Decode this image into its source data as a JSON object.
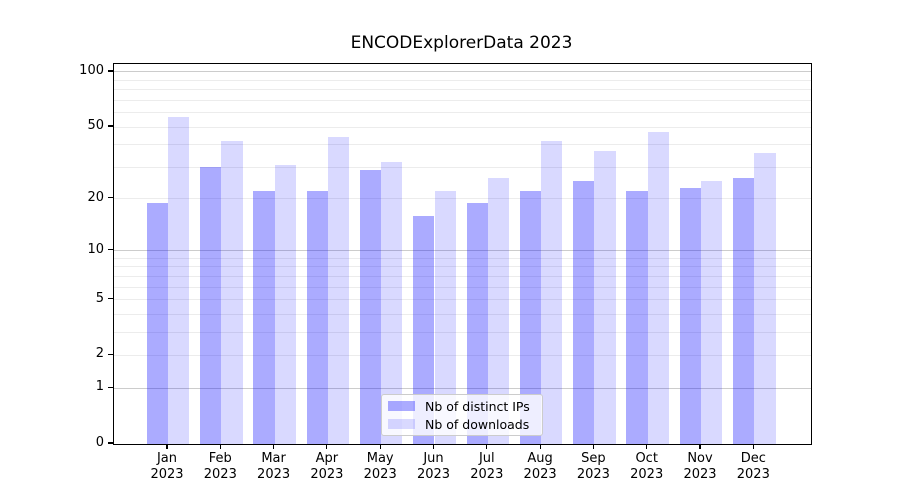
{
  "figure": {
    "title": "ENCODExplorerData 2023"
  },
  "chart_data": {
    "type": "bar",
    "title": "ENCODExplorerData 2023",
    "categories": [
      "Jan 2023",
      "Feb 2023",
      "Mar 2023",
      "Apr 2023",
      "May 2023",
      "Jun 2023",
      "Jul 2023",
      "Aug 2023",
      "Sep 2023",
      "Oct 2023",
      "Nov 2023",
      "Dec 2023"
    ],
    "x_tick_months": [
      "Jan",
      "Feb",
      "Mar",
      "Apr",
      "May",
      "Jun",
      "Jul",
      "Aug",
      "Sep",
      "Oct",
      "Nov",
      "Dec"
    ],
    "x_tick_year": "2023",
    "series": [
      {
        "name": "Nb of distinct IPs",
        "color_hex": "#aaaaff",
        "fill": "rgba(0,0,255,0.33)",
        "values": [
          19,
          30,
          22,
          22,
          29,
          16,
          19,
          22,
          25,
          22,
          23,
          26
        ]
      },
      {
        "name": "Nb of downloads",
        "color_hex": "#d9d9ff",
        "fill": "rgba(0,0,255,0.15)",
        "values": [
          57,
          42,
          31,
          44,
          32,
          22,
          26,
          42,
          37,
          47,
          25,
          36
        ]
      }
    ],
    "y_axis": {
      "scale": "log1p",
      "tick_values": [
        100,
        50,
        20,
        10,
        5,
        2,
        1,
        0
      ],
      "tick_labels": [
        "100",
        "50",
        "20",
        "10",
        "5",
        "2",
        "1",
        "0"
      ],
      "ylim": [
        0,
        110.5
      ],
      "major_gridlines": [
        1,
        10,
        100
      ],
      "minor_gridlines": [
        2,
        3,
        4,
        5,
        6,
        7,
        8,
        9,
        20,
        30,
        40,
        50,
        60,
        70,
        80,
        90
      ]
    },
    "xlabel": "",
    "ylabel": "",
    "grid": "horizontal",
    "legend": {
      "position": "lower center",
      "entries": [
        "Nb of distinct IPs",
        "Nb of downloads"
      ]
    },
    "colors": {
      "background": "#ffffff",
      "spine": "#000000",
      "major_grid": "#cccccc",
      "minor_grid": "#ececec"
    }
  }
}
